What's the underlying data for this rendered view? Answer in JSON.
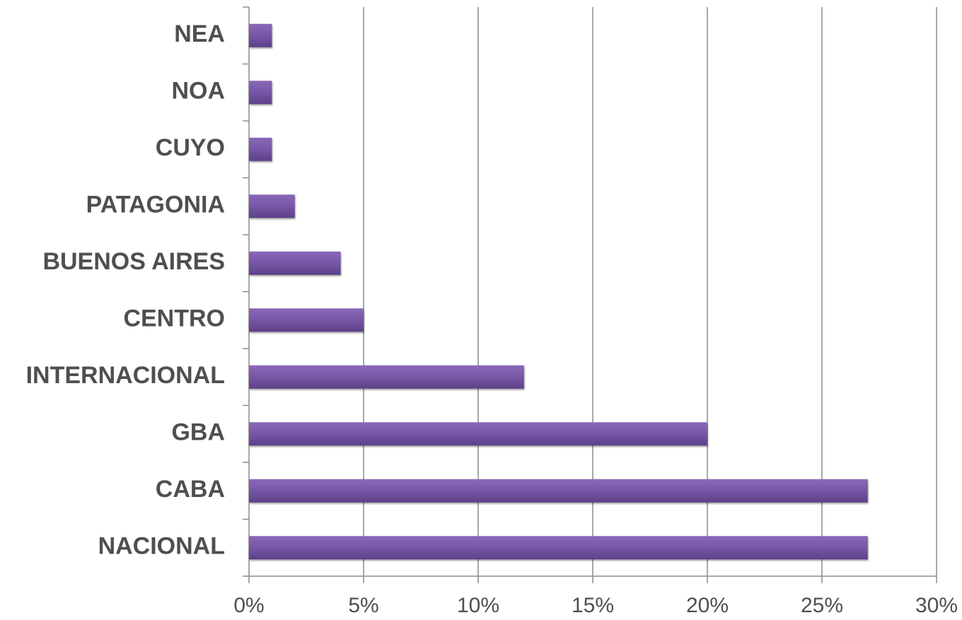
{
  "chart_data": {
    "type": "barh",
    "categories": [
      "NEA",
      "NOA",
      "CUYO",
      "PATAGONIA",
      "BUENOS AIRES",
      "CENTRO",
      "INTERNACIONAL",
      "GBA",
      "CABA",
      "NACIONAL"
    ],
    "values": [
      1,
      1,
      1,
      2,
      4,
      5,
      12,
      20,
      27,
      27
    ],
    "color": "#7b59a8",
    "xlim": [
      0,
      30
    ],
    "xticks": [
      {
        "value": 0,
        "label": "0%"
      },
      {
        "value": 5,
        "label": "5%"
      },
      {
        "value": 10,
        "label": "10%"
      },
      {
        "value": 15,
        "label": "15%"
      },
      {
        "value": 20,
        "label": "20%"
      },
      {
        "value": 25,
        "label": "25%"
      },
      {
        "value": 30,
        "label": "30%"
      }
    ],
    "grid": true
  }
}
